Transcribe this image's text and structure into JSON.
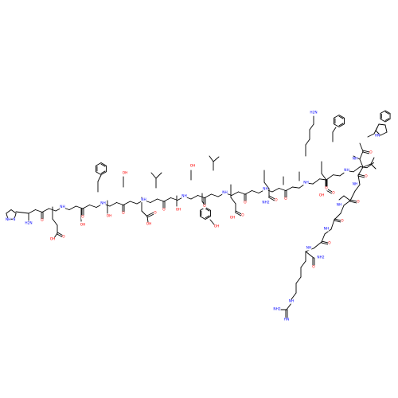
{
  "diagram": {
    "kind": "peptide-structure",
    "colors": {
      "bond": "#000000",
      "oxygen": "#ff0000",
      "nitrogen": "#0000ff",
      "background": "#ffffff"
    }
  },
  "atom_labels": {
    "oxygen": "O",
    "hydroxyl": "OH",
    "amine_h": "NH",
    "amine_h2": "H2N",
    "amide_nh2": "NH2",
    "hn": "HN",
    "imino": "HN"
  }
}
